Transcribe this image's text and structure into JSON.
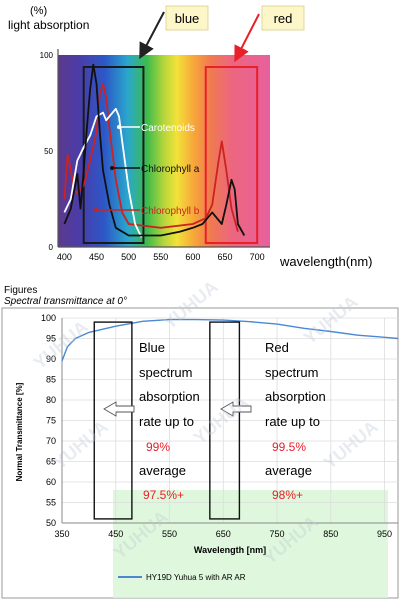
{
  "chart_data": [
    {
      "type": "line",
      "ylabel_unit": "(%)",
      "ylabel": "light absorption",
      "xlabel": "wavelength(nm)",
      "x_ticks": [
        "400",
        "450",
        "500",
        "550",
        "600",
        "650",
        "700"
      ],
      "y_ticks": [
        "0",
        "50",
        "100"
      ],
      "xlim": [
        390,
        720
      ],
      "ylim": [
        0,
        100
      ],
      "callouts": {
        "blue": "blue",
        "red": "red"
      },
      "bands": [
        {
          "name": "blue",
          "x": [
            430,
            523
          ],
          "color": "#1a1a1a"
        },
        {
          "name": "red",
          "x": [
            620,
            700
          ],
          "color": "#e8202a"
        }
      ],
      "series": [
        {
          "name": "Chlorophyll a",
          "color": "#111111",
          "points": [
            [
              400,
              12
            ],
            [
              410,
              20
            ],
            [
              420,
              38
            ],
            [
              425,
              20
            ],
            [
              430,
              40
            ],
            [
              435,
              62
            ],
            [
              440,
              82
            ],
            [
              445,
              95
            ],
            [
              450,
              85
            ],
            [
              455,
              60
            ],
            [
              460,
              40
            ],
            [
              470,
              22
            ],
            [
              480,
              10
            ],
            [
              500,
              6
            ],
            [
              550,
              6
            ],
            [
              580,
              8
            ],
            [
              600,
              10
            ],
            [
              615,
              12
            ],
            [
              630,
              18
            ],
            [
              645,
              12
            ],
            [
              652,
              22
            ],
            [
              660,
              35
            ],
            [
              665,
              30
            ],
            [
              670,
              12
            ],
            [
              680,
              6
            ]
          ]
        },
        {
          "name": "Chlorophyll b",
          "color": "#cc2222",
          "points": [
            [
              400,
              25
            ],
            [
              405,
              48
            ],
            [
              410,
              40
            ],
            [
              415,
              30
            ],
            [
              420,
              28
            ],
            [
              430,
              32
            ],
            [
              440,
              45
            ],
            [
              450,
              60
            ],
            [
              455,
              80
            ],
            [
              460,
              85
            ],
            [
              465,
              78
            ],
            [
              470,
              62
            ],
            [
              480,
              35
            ],
            [
              490,
              18
            ],
            [
              500,
              12
            ],
            [
              550,
              10
            ],
            [
              600,
              12
            ],
            [
              620,
              15
            ],
            [
              630,
              22
            ],
            [
              640,
              45
            ],
            [
              645,
              55
            ],
            [
              652,
              40
            ],
            [
              660,
              20
            ],
            [
              670,
              8
            ]
          ]
        },
        {
          "name": "Carotenoids",
          "color": "#ffffff",
          "points": [
            [
              400,
              18
            ],
            [
              410,
              25
            ],
            [
              420,
              45
            ],
            [
              430,
              52
            ],
            [
              440,
              58
            ],
            [
              450,
              68
            ],
            [
              460,
              70
            ],
            [
              465,
              66
            ],
            [
              470,
              68
            ],
            [
              480,
              72
            ],
            [
              485,
              68
            ],
            [
              490,
              55
            ],
            [
              500,
              30
            ],
            [
              510,
              12
            ],
            [
              520,
              5
            ]
          ]
        }
      ]
    },
    {
      "type": "line",
      "figures_label": "Figures",
      "title": "Spectral transmittance at 0°",
      "xlabel": "Wavelength [nm]",
      "ylabel": "Normal Transmittance [%]",
      "xlim": [
        350,
        975
      ],
      "ylim": [
        50,
        100
      ],
      "x_ticks": [
        "350",
        "450",
        "550",
        "650",
        "750",
        "850",
        "950"
      ],
      "y_ticks": [
        "50",
        "55",
        "60",
        "65",
        "70",
        "75",
        "80",
        "85",
        "90",
        "95",
        "100"
      ],
      "grid": true,
      "legend_position": "bottom",
      "series": [
        {
          "name": "HY19D Yuhua 5 with AR AR",
          "color": "#4a88d4",
          "points": [
            [
              350,
              89.5
            ],
            [
              360,
              93
            ],
            [
              375,
              95
            ],
            [
              400,
              96.5
            ],
            [
              450,
              98
            ],
            [
              500,
              99.2
            ],
            [
              550,
              99.6
            ],
            [
              600,
              99.6
            ],
            [
              650,
              99.5
            ],
            [
              700,
              99.1
            ],
            [
              750,
              98.5
            ],
            [
              800,
              97.5
            ],
            [
              850,
              96.7
            ],
            [
              900,
              95.8
            ],
            [
              950,
              95.3
            ],
            [
              975,
              95
            ]
          ]
        }
      ],
      "highlight_boxes": [
        {
          "name": "blue",
          "x": [
            410,
            480
          ],
          "y": [
            51,
            99
          ]
        },
        {
          "name": "red",
          "x": [
            625,
            680
          ],
          "y": [
            51,
            99
          ]
        }
      ],
      "annotations": {
        "blue": [
          "Blue",
          "spectrum",
          "absorption",
          "rate up to",
          "99%",
          "average",
          "97.5%+"
        ],
        "red": [
          "Red",
          "spectrum",
          "absorption",
          "rate up to",
          "99.5%",
          "average",
          "98%+"
        ]
      },
      "watermark": "YUHUA"
    }
  ]
}
